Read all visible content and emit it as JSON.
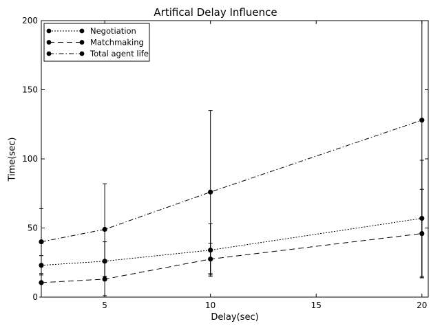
{
  "chart_data": {
    "type": "line",
    "title": "Artifical Delay Influence",
    "xlabel": "Delay(sec)",
    "ylabel": "Time(sec)",
    "xlim": [
      2,
      20.3
    ],
    "ylim": [
      0,
      200
    ],
    "xticks": [
      5,
      10,
      15,
      20
    ],
    "yticks": [
      0,
      50,
      100,
      150,
      200
    ],
    "grid": false,
    "legend_position": "top-left",
    "x": [
      2,
      5,
      10,
      20
    ],
    "series": [
      {
        "name": "Negotiation",
        "linestyle": "dotted",
        "color": "#000000",
        "values": [
          23,
          26,
          34,
          57
        ],
        "err_low": [
          16,
          15,
          16,
          14
        ],
        "err_high": [
          30,
          40,
          53,
          99
        ]
      },
      {
        "name": "Matchmaking",
        "linestyle": "dashed",
        "color": "#000000",
        "values": [
          10.5,
          13,
          27.5,
          46
        ],
        "err_low": [
          0,
          1,
          15,
          14
        ],
        "err_high": [
          17,
          25,
          39,
          78
        ]
      },
      {
        "name": "Total agent life",
        "linestyle": "dashdot",
        "color": "#000000",
        "values": [
          40,
          49,
          76,
          128
        ],
        "err_low": [
          0,
          15,
          17,
          15
        ],
        "err_high": [
          64,
          82,
          135,
          200
        ]
      }
    ]
  }
}
